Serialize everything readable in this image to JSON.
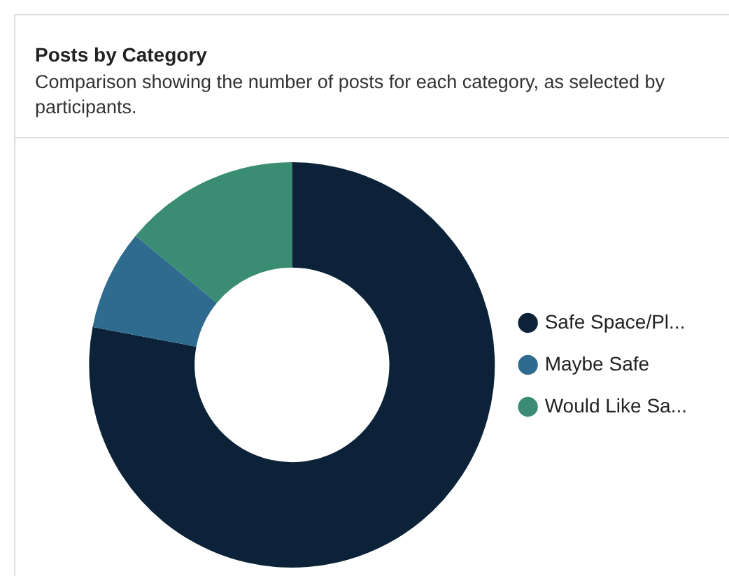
{
  "chart_data": {
    "type": "donut",
    "title": "Posts by Category",
    "subtitle": "Comparison showing the number of posts for each category, as selected by participants.",
    "categories": [
      "Safe Space/Pl...",
      "Maybe Safe",
      "Would Like Sa..."
    ],
    "values": [
      78,
      8,
      14
    ],
    "colors": [
      "#0b2239",
      "#2e6b8f",
      "#3a8c73"
    ],
    "legend": "right"
  }
}
